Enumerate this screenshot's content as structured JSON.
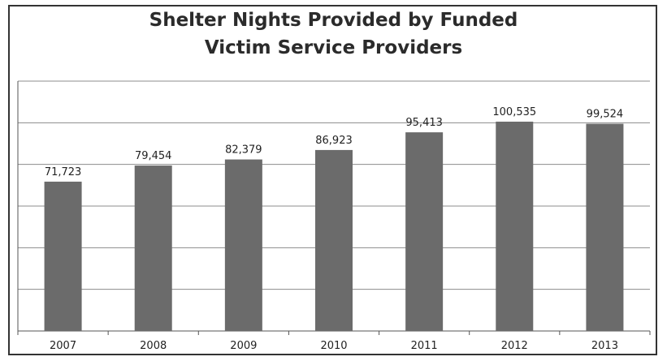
{
  "chart_data": {
    "type": "bar",
    "title_line1": "Shelter Nights Provided by Funded",
    "title_line2": "Victim Service Providers",
    "categories": [
      "2007",
      "2008",
      "2009",
      "2010",
      "2011",
      "2012",
      "2013"
    ],
    "values": [
      71723,
      79454,
      82379,
      86923,
      95413,
      100535,
      99524
    ],
    "data_labels": [
      "71,723",
      "79,454",
      "82,379",
      "86,923",
      "95,413",
      "100,535",
      "99,524"
    ],
    "xlabel": "",
    "ylabel": "",
    "ylim": [
      0,
      120000
    ],
    "grid": true,
    "legend": "none",
    "colors": {
      "bar": "#6b6b6b",
      "grid": "#8c8c8c",
      "axis": "#555555"
    }
  }
}
